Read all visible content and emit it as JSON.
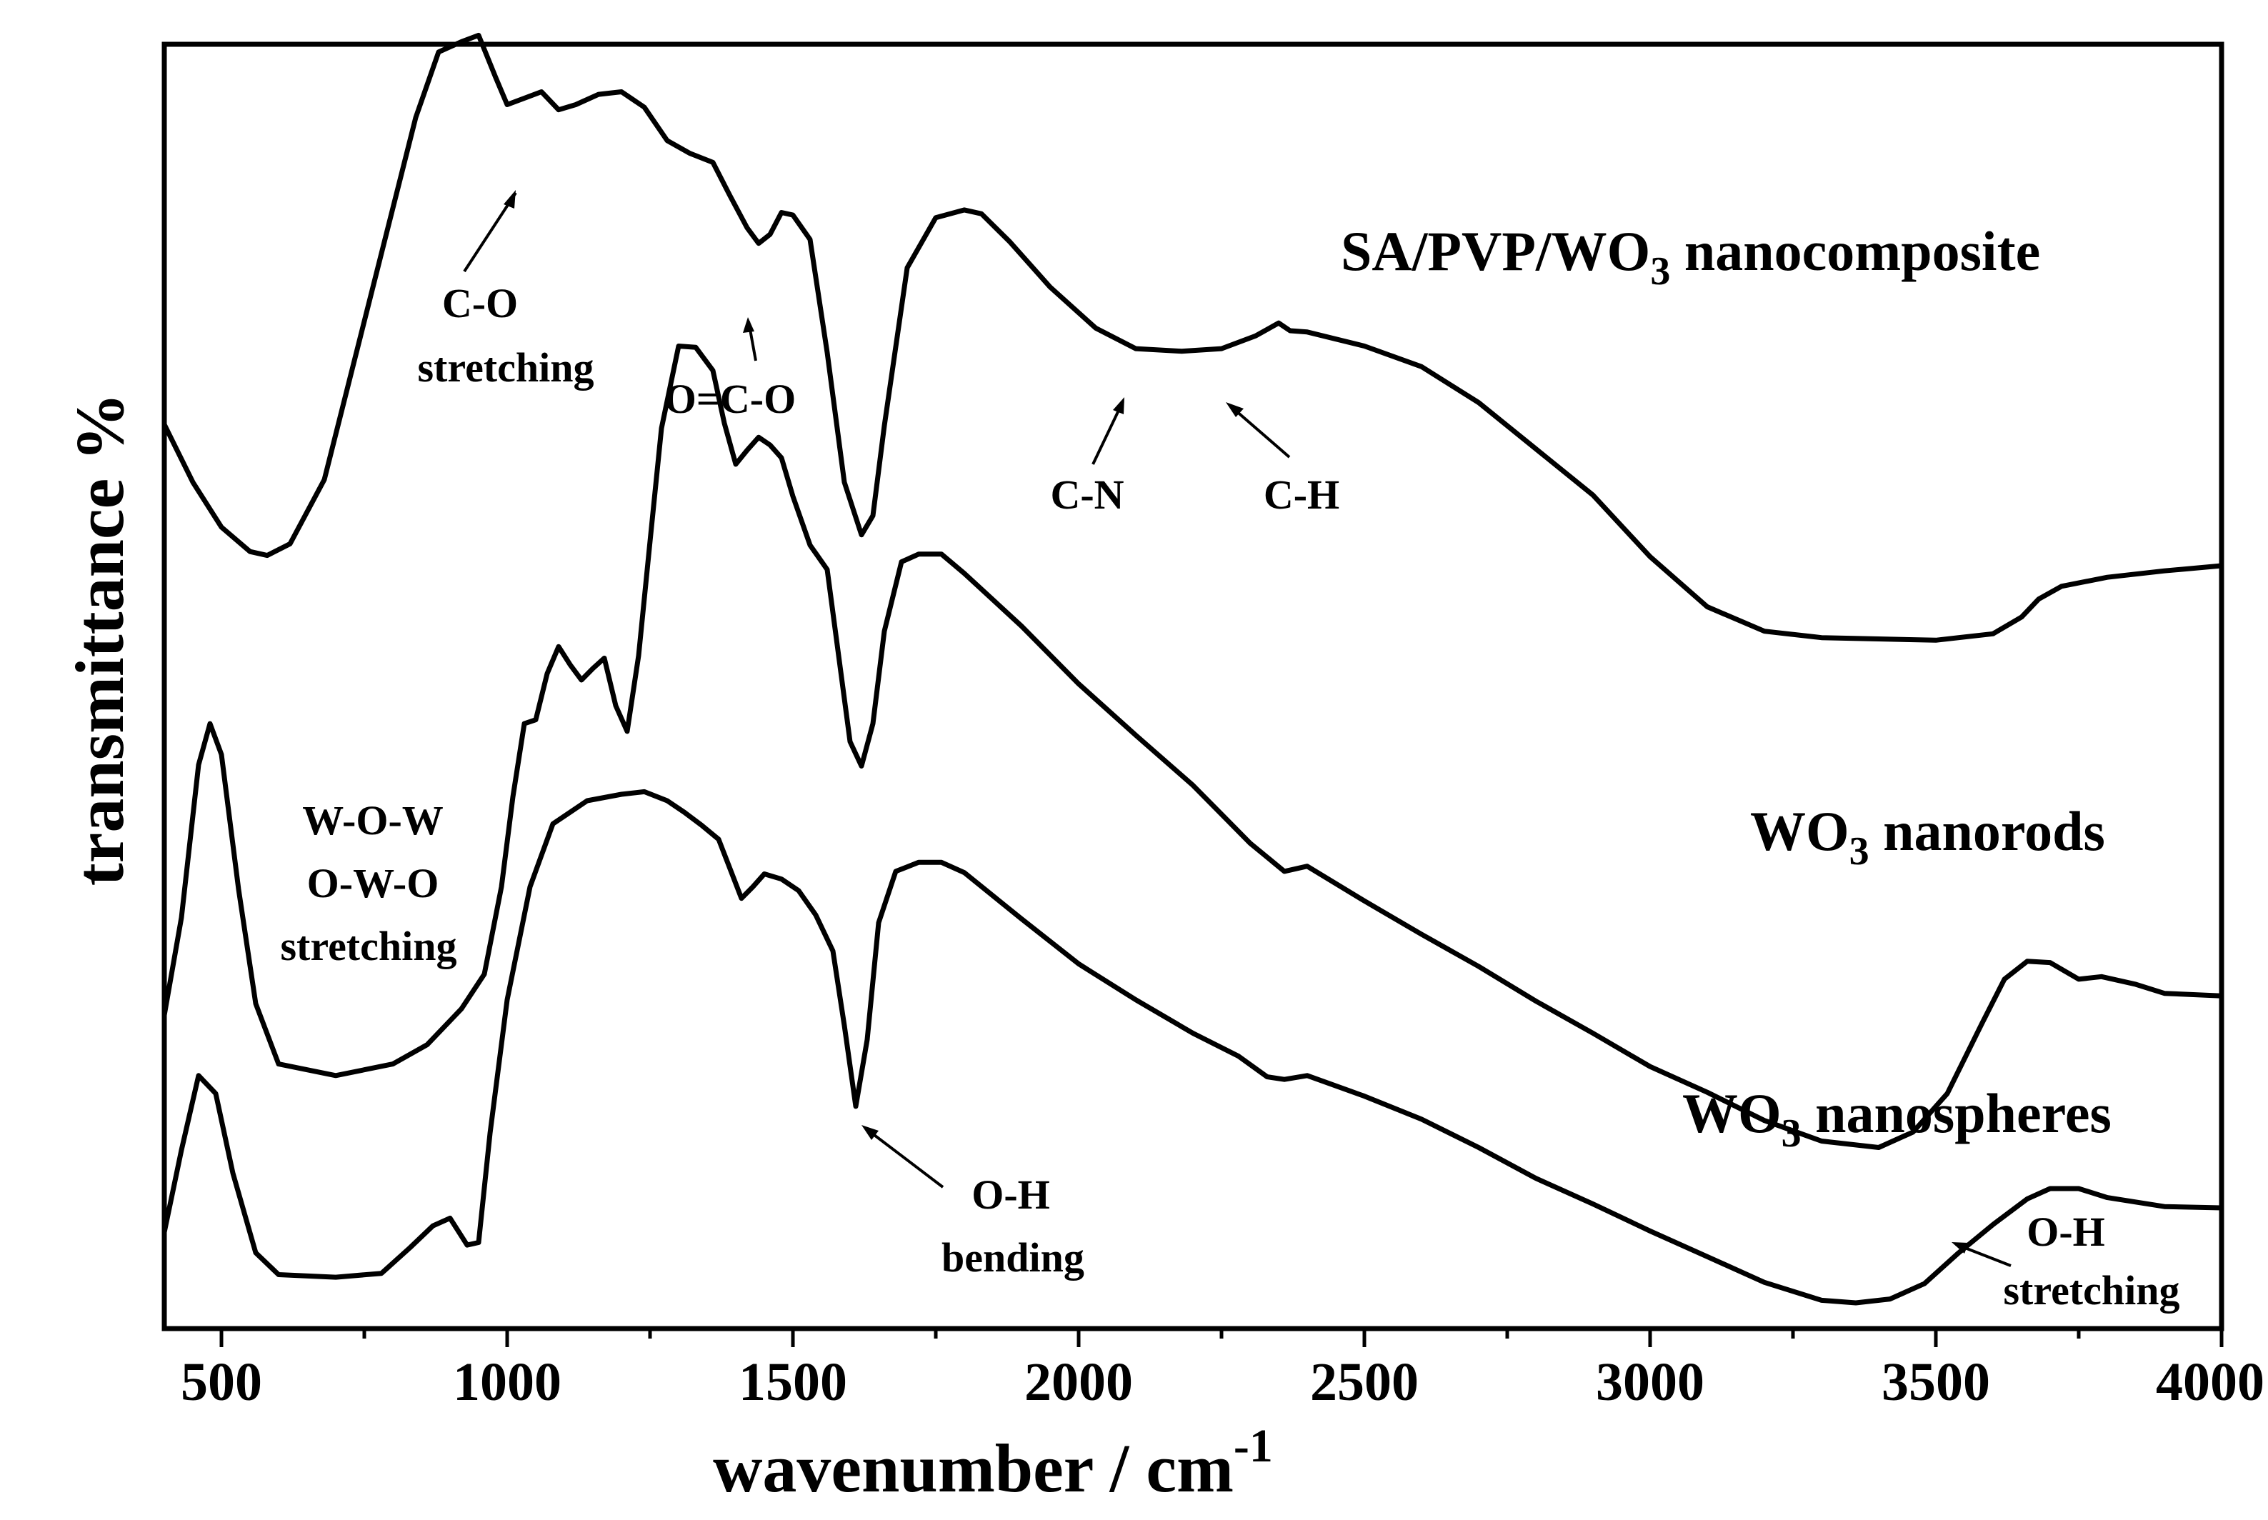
{
  "chart_data": {
    "type": "line",
    "title": "",
    "xlabel": "wavenumber / cm",
    "xlabel_sup": "-1",
    "ylabel": "transmittance %",
    "xlim": [
      400,
      4000
    ],
    "ylim": [
      0,
      100
    ],
    "x_ticks": [
      500,
      1000,
      1500,
      2000,
      2500,
      3000,
      3500,
      4000
    ],
    "x_tick_labels": [
      "500",
      "1000",
      "1500",
      "2000",
      "2500",
      "3000",
      "3500",
      "4000"
    ],
    "y_ticks_visible": false,
    "grid": false,
    "series": [
      {
        "name": "SA/PVP/WO3 nanocomposite",
        "label_main": "SA/PVP/WO",
        "label_sub": "3",
        "label_tail": " nanocomposite",
        "x": [
          400,
          450,
          500,
          550,
          580,
          620,
          680,
          760,
          840,
          880,
          920,
          950,
          980,
          1000,
          1030,
          1060,
          1090,
          1120,
          1160,
          1200,
          1240,
          1280,
          1320,
          1360,
          1390,
          1420,
          1440,
          1460,
          1480,
          1500,
          1530,
          1560,
          1590,
          1620,
          1640,
          1660,
          1700,
          1750,
          1800,
          1830,
          1880,
          1950,
          2030,
          2100,
          2180,
          2250,
          2310,
          2350,
          2370,
          2400,
          2500,
          2600,
          2700,
          2800,
          2900,
          3000,
          3100,
          3200,
          3300,
          3400,
          3500,
          3600,
          3650,
          3680,
          3720,
          3800,
          3900,
          4000
        ],
        "values": [
          70.4,
          65.9,
          62.4,
          60.5,
          60.2,
          61.1,
          66.1,
          80.2,
          94.3,
          99.4,
          100.2,
          100.7,
          97.4,
          95.3,
          95.8,
          96.3,
          94.9,
          95.3,
          96.1,
          96.3,
          95.1,
          92.5,
          91.5,
          90.8,
          88.2,
          85.7,
          84.5,
          85.2,
          86.9,
          86.7,
          84.8,
          76.0,
          65.9,
          61.8,
          63.3,
          70.3,
          82.6,
          86.5,
          87.1,
          86.8,
          84.6,
          81.1,
          77.9,
          76.3,
          76.1,
          76.3,
          77.3,
          78.3,
          77.7,
          77.6,
          76.5,
          74.9,
          72.1,
          68.5,
          64.9,
          60.1,
          56.2,
          54.3,
          53.8,
          53.7,
          53.6,
          54.1,
          55.4,
          56.8,
          57.8,
          58.5,
          59.0,
          59.4
        ]
      },
      {
        "name": "WO3 nanorods",
        "label_main": "WO",
        "label_sub": "3",
        "label_tail": " nanorods",
        "x": [
          400,
          430,
          460,
          480,
          500,
          530,
          560,
          600,
          700,
          800,
          860,
          920,
          960,
          990,
          1010,
          1030,
          1050,
          1070,
          1090,
          1110,
          1130,
          1150,
          1170,
          1190,
          1210,
          1230,
          1250,
          1270,
          1300,
          1330,
          1360,
          1380,
          1400,
          1420,
          1440,
          1460,
          1480,
          1500,
          1530,
          1560,
          1580,
          1600,
          1620,
          1640,
          1660,
          1690,
          1720,
          1760,
          1800,
          1900,
          2000,
          2100,
          2200,
          2300,
          2360,
          2400,
          2500,
          2600,
          2700,
          2800,
          2900,
          3000,
          3100,
          3200,
          3300,
          3400,
          3460,
          3520,
          3580,
          3620,
          3660,
          3700,
          3750,
          3790,
          3850,
          3900,
          4000
        ],
        "values": [
          24.4,
          32.0,
          43.9,
          47.1,
          44.7,
          34.2,
          25.3,
          20.6,
          19.7,
          20.6,
          22.1,
          24.9,
          27.6,
          34.4,
          41.4,
          47.1,
          47.4,
          51.0,
          53.1,
          51.7,
          50.5,
          51.4,
          52.2,
          48.5,
          46.5,
          52.4,
          61.3,
          70.1,
          76.5,
          76.4,
          74.6,
          70.5,
          67.3,
          68.4,
          69.4,
          68.8,
          67.8,
          64.8,
          61.0,
          59.1,
          52.4,
          45.7,
          43.8,
          47.1,
          54.3,
          59.7,
          60.3,
          60.3,
          58.8,
          54.7,
          50.2,
          46.2,
          42.3,
          37.8,
          35.6,
          36.0,
          33.3,
          30.7,
          28.2,
          25.5,
          23.0,
          20.4,
          18.4,
          16.2,
          14.6,
          14.1,
          15.3,
          18.3,
          23.7,
          27.2,
          28.6,
          28.5,
          27.2,
          27.4,
          26.8,
          26.1,
          25.9
        ]
      },
      {
        "name": "WO3 nanospheres",
        "label_main": "WO",
        "label_sub": "3",
        "label_tail": " nanospheres",
        "x": [
          400,
          430,
          460,
          490,
          520,
          560,
          600,
          700,
          780,
          830,
          870,
          900,
          930,
          950,
          970,
          1000,
          1040,
          1080,
          1140,
          1200,
          1240,
          1280,
          1310,
          1340,
          1370,
          1390,
          1410,
          1430,
          1450,
          1480,
          1510,
          1540,
          1570,
          1590,
          1610,
          1630,
          1650,
          1680,
          1720,
          1760,
          1800,
          1900,
          2000,
          2100,
          2200,
          2280,
          2330,
          2360,
          2400,
          2500,
          2600,
          2700,
          2800,
          2900,
          3000,
          3100,
          3200,
          3300,
          3360,
          3420,
          3480,
          3540,
          3600,
          3660,
          3700,
          3750,
          3800,
          3900,
          4000
        ],
        "values": [
          7.5,
          13.9,
          19.7,
          18.3,
          12.1,
          5.9,
          4.2,
          4.0,
          4.3,
          6.3,
          8.0,
          8.6,
          6.5,
          6.7,
          15.2,
          25.6,
          34.4,
          39.3,
          41.1,
          41.6,
          41.8,
          41.1,
          40.2,
          39.2,
          38.1,
          35.8,
          33.5,
          34.4,
          35.4,
          35.0,
          34.1,
          32.2,
          29.4,
          23.6,
          17.3,
          22.5,
          31.6,
          35.6,
          36.3,
          36.3,
          35.5,
          31.9,
          28.4,
          25.6,
          23.0,
          21.2,
          19.6,
          19.4,
          19.7,
          18.1,
          16.3,
          14.1,
          11.7,
          9.7,
          7.6,
          5.6,
          3.6,
          2.2,
          2.0,
          2.3,
          3.5,
          5.9,
          8.1,
          10.1,
          10.9,
          10.9,
          10.2,
          9.5,
          9.4
        ]
      }
    ],
    "annotations": [
      {
        "name": "c-o-stretching",
        "lines": [
          "C-O",
          "stretching"
        ]
      },
      {
        "name": "o-c-o",
        "lines": [
          "O=C-O"
        ]
      },
      {
        "name": "c-n",
        "lines": [
          "C-N"
        ]
      },
      {
        "name": "c-h",
        "lines": [
          "C-H"
        ]
      },
      {
        "name": "w-o-w-stretching",
        "lines": [
          "W-O-W",
          "O-W-O",
          "stretching"
        ]
      },
      {
        "name": "o-h-bending",
        "lines": [
          "O-H",
          "bending"
        ]
      },
      {
        "name": "o-h-stretching",
        "lines": [
          "O-H",
          "stretching"
        ]
      }
    ]
  }
}
